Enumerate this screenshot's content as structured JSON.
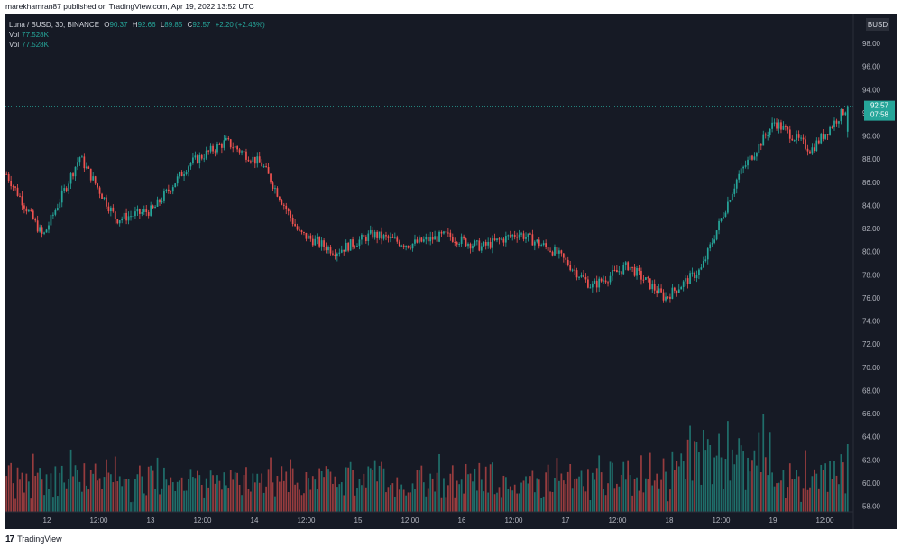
{
  "header": {
    "published_text": "marekhamran87 published on TradingView.com, Apr 19, 2022 13:52 UTC"
  },
  "legend": {
    "symbol": "Luna / BUSD, 30, BINANCE",
    "o_label": "O",
    "o_value": "90.37",
    "h_label": "H",
    "h_value": "92.66",
    "l_label": "L",
    "l_value": "89.85",
    "c_label": "C",
    "c_value": "92.57",
    "change": "+2.20 (+2.43%)",
    "vol1_label": "Vol",
    "vol1_value": "77.528K",
    "vol2_label": "Vol",
    "vol2_value": "77.528K"
  },
  "price_axis": {
    "currency": "BUSD",
    "ticks": [
      "98.00",
      "96.00",
      "94.00",
      "92.00",
      "90.00",
      "88.00",
      "86.00",
      "84.00",
      "82.00",
      "80.00",
      "78.00",
      "76.00",
      "74.00",
      "72.00",
      "70.00",
      "68.00",
      "66.00",
      "64.00",
      "62.00",
      "60.00",
      "58.00"
    ],
    "last_price": "92.57",
    "countdown": "07:58"
  },
  "time_axis": {
    "ticks": [
      "12",
      "12:00",
      "13",
      "12:00",
      "14",
      "12:00",
      "15",
      "12:00",
      "16",
      "12:00",
      "17",
      "12:00",
      "18",
      "12:00",
      "19",
      "12:00"
    ]
  },
  "footer": {
    "brand": "TradingView"
  },
  "colors": {
    "up": "#26a69a",
    "down": "#ef5350",
    "background": "#161a25",
    "axis_text": "#b2b5be"
  },
  "chart_data": {
    "type": "candlestick",
    "title": "Luna / BUSD, 30, BINANCE",
    "ylabel": "BUSD",
    "ylim": [
      57.5,
      100.5
    ],
    "grid": false,
    "x_range": [
      "Apr 11 ~16:00",
      "Apr 19 ~13:30"
    ],
    "keypoints": [
      {
        "t": "Apr 11 16:00",
        "price": 86.7
      },
      {
        "t": "Apr 12 04:00",
        "price": 81.3
      },
      {
        "t": "Apr 12 12:00",
        "price": 88.2
      },
      {
        "t": "Apr 12 20:00",
        "price": 82.8
      },
      {
        "t": "Apr 13 11:00",
        "price": 83.6
      },
      {
        "t": "Apr 13 18:00",
        "price": 87.6
      },
      {
        "t": "Apr 14 03:00",
        "price": 89.5
      },
      {
        "t": "Apr 14 11:00",
        "price": 87.5
      },
      {
        "t": "Apr 14 18:00",
        "price": 81.6
      },
      {
        "t": "Apr 15 01:00",
        "price": 80.0
      },
      {
        "t": "Apr 15 12:00",
        "price": 81.5
      },
      {
        "t": "Apr 16 00:00",
        "price": 80.6
      },
      {
        "t": "Apr 16 12:00",
        "price": 81.4
      },
      {
        "t": "Apr 17 00:00",
        "price": 80.4
      },
      {
        "t": "Apr 17 12:00",
        "price": 81.6
      },
      {
        "t": "Apr 17 22:00",
        "price": 80.0
      },
      {
        "t": "Apr 18 03:00",
        "price": 77.0
      },
      {
        "t": "Apr 18 06:00",
        "price": 78.8
      },
      {
        "t": "Apr 18 08:00",
        "price": 76.0
      },
      {
        "t": "Apr 18 14:00",
        "price": 78.5
      },
      {
        "t": "Apr 18 20:00",
        "price": 86.5
      },
      {
        "t": "Apr 19 01:00",
        "price": 91.2
      },
      {
        "t": "Apr 19 09:00",
        "price": 88.8
      },
      {
        "t": "Apr 19 13:30",
        "price": 92.57
      }
    ],
    "last": {
      "open": 90.37,
      "high": 92.66,
      "low": 89.85,
      "close": 92.57,
      "change": 2.2,
      "change_pct": 2.43
    },
    "volume": {
      "last": "77.528K"
    }
  }
}
